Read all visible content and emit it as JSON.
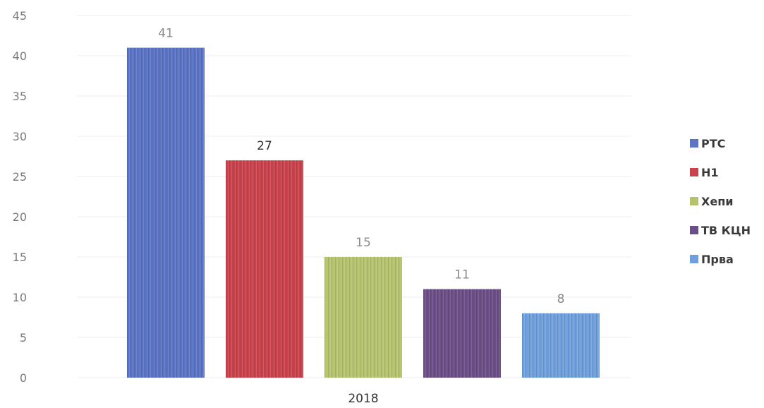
{
  "chart_data": {
    "type": "bar",
    "title": "",
    "xlabel": "",
    "ylabel": "",
    "categories": [
      "2018"
    ],
    "series": [
      {
        "name": "РТС",
        "values": [
          41
        ],
        "color": "#5b74c4"
      },
      {
        "name": "Н1",
        "values": [
          27
        ],
        "color": "#c9434d"
      },
      {
        "name": "Хепи",
        "values": [
          15
        ],
        "color": "#b5c36e"
      },
      {
        "name": "ТВ КЦН",
        "values": [
          11
        ],
        "color": "#6b4f86"
      },
      {
        "name": "Прва",
        "values": [
          8
        ],
        "color": "#6fa0db"
      }
    ],
    "data_labels": [
      "41",
      "27",
      "15",
      "11",
      "8"
    ],
    "ylim": [
      0,
      45
    ],
    "yticks": [
      0,
      5,
      10,
      15,
      20,
      25,
      30,
      35,
      40,
      45
    ],
    "grid": true,
    "legend_position": "right"
  }
}
